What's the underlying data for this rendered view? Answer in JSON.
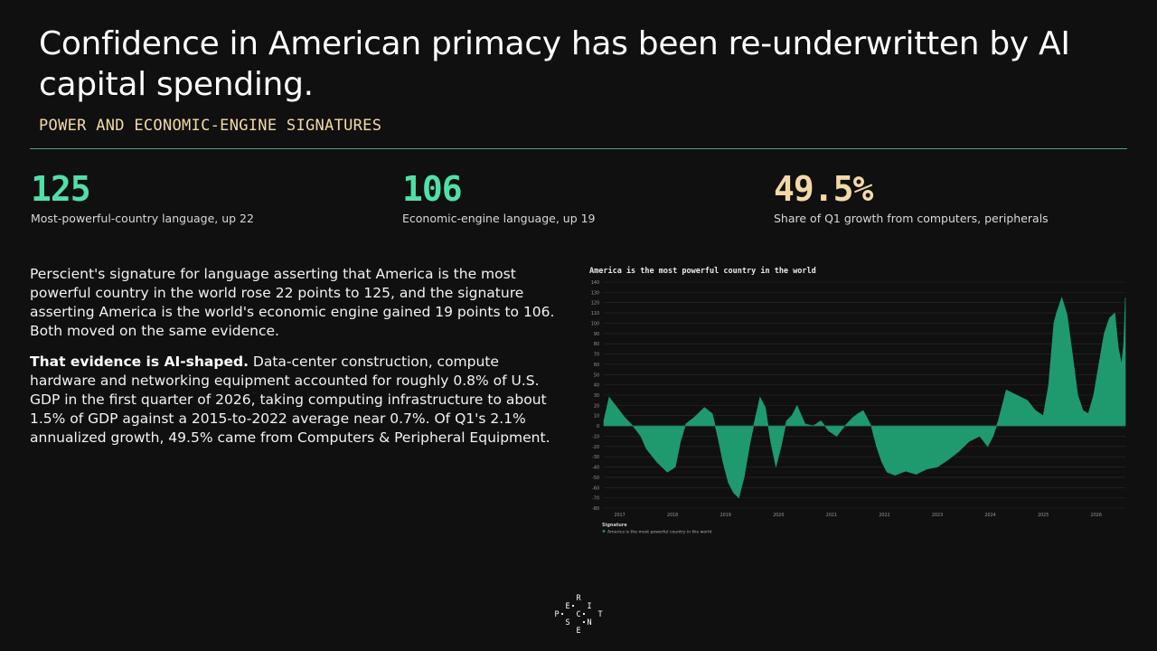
{
  "header": {
    "title": "Confidence in American primacy has been re-underwritten by AI capital spending.",
    "subtitle": "POWER AND ECONOMIC-ENGINE SIGNATURES"
  },
  "stats": [
    {
      "value": "125",
      "label": "Most-powerful-country language, up 22",
      "color": "#4fe0a8"
    },
    {
      "value": "106",
      "label": "Economic-engine language, up 19",
      "color": "#4fe0a8"
    },
    {
      "value": "49.5%",
      "label": "Share of Q1 growth from computers, peripherals",
      "color": "#f2d9a7"
    }
  ],
  "body": {
    "p1": "Perscient's signature for language asserting that America is the most powerful country in the world rose 22 points to 125, and the signature asserting America is the world's economic engine gained 19 points to 106. Both moved on the same evidence.",
    "p2_lead": "That evidence is AI-shaped.",
    "p2_rest": " Data-center construction, compute hardware and networking equipment accounted for roughly 0.8% of U.S. GDP in the first quarter of 2026, taking computing infrastructure to about 1.5% of GDP against a 2015-to-2022 average near 0.7%. Of Q1's 2.1% annualized growth, 49.5% came from Computers & Peripheral Equipment."
  },
  "logo": {
    "letters": [
      "R",
      "E",
      "I",
      "P",
      "C",
      "T",
      "S",
      "N",
      "E"
    ]
  },
  "chart_data": {
    "type": "area",
    "title": "America is the most powerful country in the world",
    "ylim": [
      -80,
      140
    ],
    "yticks": [
      140,
      130,
      120,
      110,
      100,
      90,
      80,
      70,
      60,
      50,
      40,
      30,
      20,
      10,
      0,
      -10,
      -20,
      -30,
      -40,
      -50,
      -60,
      -70,
      -80
    ],
    "xlim": [
      2016.7,
      2026.55
    ],
    "xticks": [
      "2017",
      "2018",
      "2019",
      "2020",
      "2021",
      "2022",
      "2023",
      "2024",
      "2025",
      "2026"
    ],
    "grid": true,
    "legend_title": "Signature",
    "series": [
      {
        "name": "America is the most powerful country in the world",
        "color": "#1f9a6e",
        "x": [
          2016.7,
          2016.8,
          2016.95,
          2017.1,
          2017.25,
          2017.4,
          2017.5,
          2017.7,
          2017.9,
          2018.05,
          2018.15,
          2018.25,
          2018.4,
          2018.6,
          2018.75,
          2018.85,
          2018.95,
          2019.05,
          2019.15,
          2019.25,
          2019.35,
          2019.45,
          2019.55,
          2019.65,
          2019.75,
          2019.85,
          2019.95,
          2020.05,
          2020.15,
          2020.25,
          2020.35,
          2020.5,
          2020.65,
          2020.8,
          2020.95,
          2021.1,
          2021.25,
          2021.4,
          2021.5,
          2021.6,
          2021.75,
          2021.85,
          2021.95,
          2022.05,
          2022.2,
          2022.4,
          2022.6,
          2022.8,
          2023.0,
          2023.2,
          2023.4,
          2023.6,
          2023.8,
          2023.95,
          2024.05,
          2024.15,
          2024.3,
          2024.5,
          2024.7,
          2024.85,
          2025.0,
          2025.1,
          2025.2,
          2025.25,
          2025.35,
          2025.45,
          2025.55,
          2025.65,
          2025.75,
          2025.85,
          2025.95,
          2026.05,
          2026.15,
          2026.25,
          2026.35,
          2026.42,
          2026.48,
          2026.52,
          2026.55
        ],
        "values": [
          5,
          28,
          18,
          8,
          0,
          -10,
          -22,
          -35,
          -45,
          -40,
          -15,
          2,
          8,
          18,
          12,
          -10,
          -35,
          -55,
          -65,
          -70,
          -50,
          -20,
          5,
          28,
          18,
          -15,
          -40,
          -20,
          5,
          10,
          20,
          2,
          0,
          5,
          -5,
          -10,
          0,
          8,
          12,
          15,
          0,
          -20,
          -35,
          -45,
          -48,
          -44,
          -47,
          -42,
          -40,
          -33,
          -25,
          -15,
          -10,
          -20,
          -10,
          5,
          35,
          30,
          25,
          15,
          10,
          40,
          100,
          110,
          125,
          108,
          70,
          30,
          15,
          12,
          30,
          60,
          90,
          105,
          110,
          75,
          60,
          80,
          125
        ]
      }
    ]
  }
}
